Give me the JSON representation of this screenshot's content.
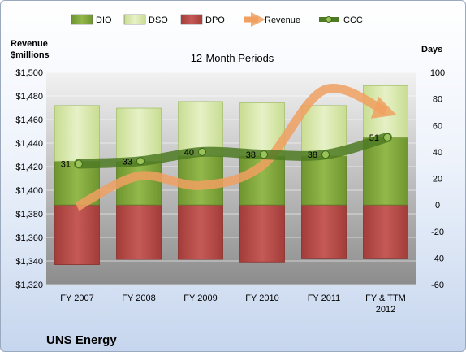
{
  "chart_data": {
    "type": "bar",
    "subtitle": "12-Month Periods",
    "company": "UNS Energy",
    "left_axis_label": "Revenue\n$millions",
    "right_axis_label": "Days",
    "categories": [
      "FY 2007",
      "FY 2008",
      "FY 2009",
      "FY 2010",
      "FY 2011",
      "FY & TTM\n2012"
    ],
    "left_ylim": [
      1320,
      1500
    ],
    "left_ticks": [
      "$1,320",
      "$1,340",
      "$1,360",
      "$1,380",
      "$1,400",
      "$1,420",
      "$1,440",
      "$1,460",
      "$1,480",
      "$1,500"
    ],
    "right_ylim": [
      -60,
      100
    ],
    "right_ticks": [
      "-60",
      "-40",
      "-20",
      "0",
      "20",
      "40",
      "60",
      "80",
      "100"
    ],
    "legend": [
      "DIO",
      "DSO",
      "DPO",
      "Revenue",
      "CCC"
    ],
    "legend_position": "top",
    "grid": true,
    "series": [
      {
        "name": "DIO",
        "axis": "right",
        "color": "#84a83c",
        "values": [
          33,
          33,
          37,
          37,
          37,
          51
        ]
      },
      {
        "name": "DSO",
        "axis": "right",
        "color": "#dbe9b0",
        "values": [
          42,
          40,
          41,
          40,
          38,
          39
        ]
      },
      {
        "name": "DPO",
        "axis": "right",
        "color": "#c0504d",
        "values": [
          -45,
          -41,
          -41,
          -43,
          -40,
          -40
        ]
      },
      {
        "name": "Revenue",
        "axis": "left",
        "color": "#f0a060",
        "values": [
          1386,
          1412,
          1404,
          1421,
          1485,
          1467
        ]
      },
      {
        "name": "CCC",
        "axis": "right",
        "color": "#4e7a23",
        "values": [
          31,
          33,
          40,
          38,
          38,
          51
        ],
        "labels": [
          "31",
          "33",
          "40",
          "38",
          "38",
          "51"
        ]
      }
    ]
  }
}
